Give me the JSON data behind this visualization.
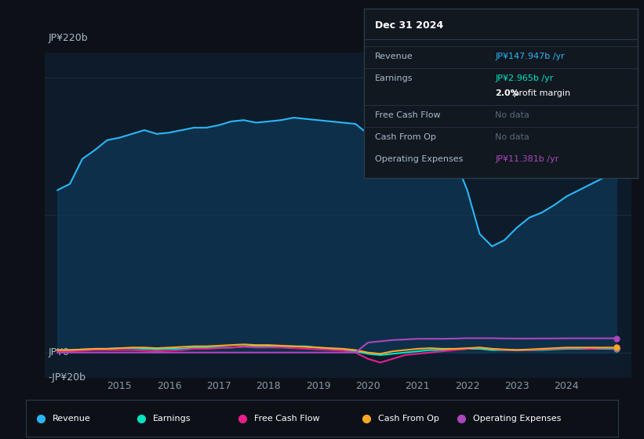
{
  "bg_color": "#0d1117",
  "plot_bg_color": "#0d1b2a",
  "grid_color": "#1e2d3d",
  "ylabel_top": "JP¥220b",
  "ylabel_zero": "JP¥0",
  "ylabel_neg": "-JP¥20b",
  "ylim": [
    -20,
    240
  ],
  "xlim": [
    2013.5,
    2025.3
  ],
  "xticks": [
    2015,
    2016,
    2017,
    2018,
    2019,
    2020,
    2021,
    2022,
    2023,
    2024
  ],
  "series": {
    "Revenue": {
      "color": "#29b6f6",
      "fill_color": "#0d3d5e",
      "x": [
        2013.75,
        2014.0,
        2014.25,
        2014.5,
        2014.75,
        2015.0,
        2015.25,
        2015.5,
        2015.75,
        2016.0,
        2016.25,
        2016.5,
        2016.75,
        2017.0,
        2017.25,
        2017.5,
        2017.75,
        2018.0,
        2018.25,
        2018.5,
        2018.75,
        2019.0,
        2019.25,
        2019.5,
        2019.75,
        2020.0,
        2020.25,
        2020.5,
        2020.75,
        2021.0,
        2021.25,
        2021.5,
        2021.75,
        2022.0,
        2022.25,
        2022.5,
        2022.75,
        2023.0,
        2023.25,
        2023.5,
        2023.75,
        2024.0,
        2024.25,
        2024.5,
        2024.75,
        2025.0
      ],
      "y": [
        130,
        135,
        155,
        162,
        170,
        172,
        175,
        178,
        175,
        176,
        178,
        180,
        180,
        182,
        185,
        186,
        184,
        185,
        186,
        188,
        187,
        186,
        185,
        184,
        183,
        175,
        165,
        158,
        150,
        148,
        150,
        152,
        155,
        130,
        95,
        85,
        90,
        100,
        108,
        112,
        118,
        125,
        130,
        135,
        140,
        148
      ]
    },
    "Earnings": {
      "color": "#00e5c3",
      "x": [
        2013.75,
        2014.0,
        2014.25,
        2014.5,
        2014.75,
        2015.0,
        2015.25,
        2015.5,
        2015.75,
        2016.0,
        2016.25,
        2016.5,
        2016.75,
        2017.0,
        2017.25,
        2017.5,
        2017.75,
        2018.0,
        2018.25,
        2018.5,
        2018.75,
        2019.0,
        2019.25,
        2019.5,
        2019.75,
        2020.0,
        2020.25,
        2020.5,
        2020.75,
        2021.0,
        2021.25,
        2021.5,
        2021.75,
        2022.0,
        2022.25,
        2022.5,
        2022.75,
        2023.0,
        2023.25,
        2023.5,
        2023.75,
        2024.0,
        2024.25,
        2024.5,
        2024.75,
        2025.0
      ],
      "y": [
        2,
        2,
        2.5,
        3,
        3,
        3.5,
        3.5,
        3,
        2.5,
        3,
        3,
        4,
        4,
        4,
        4,
        5,
        5,
        5,
        5,
        5,
        5,
        4,
        3,
        2,
        1,
        -1,
        -2,
        -1,
        0,
        1,
        2,
        2,
        2.5,
        3,
        3,
        2,
        2,
        2,
        2,
        2,
        2.5,
        3,
        3,
        3,
        3,
        3
      ]
    },
    "FreeCashFlow": {
      "color": "#e91e8c",
      "x": [
        2013.75,
        2014.0,
        2014.25,
        2014.5,
        2014.75,
        2015.0,
        2015.25,
        2015.5,
        2015.75,
        2016.0,
        2016.25,
        2016.5,
        2016.75,
        2017.0,
        2017.25,
        2017.5,
        2017.75,
        2018.0,
        2018.25,
        2018.5,
        2018.75,
        2019.0,
        2019.25,
        2019.5,
        2019.75,
        2020.0,
        2020.25,
        2020.5,
        2020.75,
        2021.0,
        2021.25,
        2021.5,
        2021.75,
        2022.0,
        2022.25,
        2022.5,
        2022.75,
        2023.0,
        2023.25,
        2023.5,
        2023.75,
        2024.0,
        2024.25,
        2024.5,
        2024.75,
        2025.0
      ],
      "y": [
        1,
        1,
        1.5,
        2,
        2,
        2,
        2,
        1.5,
        1,
        1.5,
        2,
        3,
        3,
        3.5,
        4,
        4.5,
        4,
        4,
        4,
        3.5,
        3,
        2.5,
        2,
        1.5,
        0,
        -5,
        -8,
        -5,
        -2,
        -1,
        0,
        1,
        2,
        3,
        4,
        3,
        2,
        2,
        2,
        2.5,
        3,
        3.5,
        3.5,
        3,
        3.5,
        3.5
      ]
    },
    "CashFromOp": {
      "color": "#ffa726",
      "x": [
        2013.75,
        2014.0,
        2014.25,
        2014.5,
        2014.75,
        2015.0,
        2015.25,
        2015.5,
        2015.75,
        2016.0,
        2016.25,
        2016.5,
        2016.75,
        2017.0,
        2017.25,
        2017.5,
        2017.75,
        2018.0,
        2018.25,
        2018.5,
        2018.75,
        2019.0,
        2019.25,
        2019.5,
        2019.75,
        2020.0,
        2020.25,
        2020.5,
        2020.75,
        2021.0,
        2021.25,
        2021.5,
        2021.75,
        2022.0,
        2022.25,
        2022.5,
        2022.75,
        2023.0,
        2023.25,
        2023.5,
        2023.75,
        2024.0,
        2024.25,
        2024.5,
        2024.75,
        2025.0
      ],
      "y": [
        2,
        2,
        2.5,
        3,
        3,
        3.5,
        4,
        4,
        3.5,
        4,
        4.5,
        5,
        5,
        5.5,
        6,
        6.5,
        6,
        6,
        5.5,
        5,
        4.5,
        4,
        3.5,
        3,
        2,
        0,
        -1,
        1,
        2,
        3,
        3.5,
        3,
        3,
        3.5,
        4,
        3,
        2.5,
        2,
        2.5,
        3,
        3.5,
        4,
        4,
        4,
        4,
        4
      ]
    },
    "OperatingExpenses": {
      "color": "#ab47bc",
      "x": [
        2013.75,
        2014.0,
        2014.25,
        2014.5,
        2014.75,
        2015.0,
        2015.25,
        2015.5,
        2015.75,
        2016.0,
        2016.25,
        2016.5,
        2016.75,
        2017.0,
        2017.25,
        2017.5,
        2017.75,
        2018.0,
        2018.25,
        2018.5,
        2018.75,
        2019.0,
        2019.25,
        2019.5,
        2019.75,
        2020.0,
        2020.25,
        2020.5,
        2020.75,
        2021.0,
        2021.25,
        2021.5,
        2021.75,
        2022.0,
        2022.25,
        2022.5,
        2022.75,
        2023.0,
        2023.25,
        2023.5,
        2023.75,
        2024.0,
        2024.25,
        2024.5,
        2024.75,
        2025.0
      ],
      "y": [
        0,
        0,
        0,
        0,
        0,
        0,
        0,
        0,
        0,
        0,
        0,
        0,
        0,
        0,
        0,
        0,
        0,
        0,
        0,
        0,
        0,
        0,
        0,
        0,
        0,
        8,
        9,
        10,
        10.5,
        11,
        11,
        11,
        11.2,
        11.5,
        11.5,
        11.5,
        11.3,
        11.2,
        11.2,
        11.3,
        11.3,
        11.4,
        11.4,
        11.4,
        11.4,
        11.4
      ]
    }
  },
  "info_box": {
    "title": "Dec 31 2024",
    "rows": [
      {
        "label": "Revenue",
        "value": "JP¥147.947b /yr",
        "value_color": "#29b6f6",
        "bold_part": null
      },
      {
        "label": "Earnings",
        "value": "JP¥2.965b /yr",
        "value_color": "#00e5c3",
        "bold_part": null
      },
      {
        "label": "",
        "value": "2.0% profit margin",
        "value_color": "#ffffff",
        "bold_part": "2.0%"
      },
      {
        "label": "Free Cash Flow",
        "value": "No data",
        "value_color": "#5a6a7a",
        "bold_part": null
      },
      {
        "label": "Cash From Op",
        "value": "No data",
        "value_color": "#5a6a7a",
        "bold_part": null
      },
      {
        "label": "Operating Expenses",
        "value": "JP¥11.381b /yr",
        "value_color": "#ab47bc",
        "bold_part": null
      }
    ]
  },
  "legend": [
    {
      "label": "Revenue",
      "color": "#29b6f6"
    },
    {
      "label": "Earnings",
      "color": "#00e5c3"
    },
    {
      "label": "Free Cash Flow",
      "color": "#e91e8c"
    },
    {
      "label": "Cash From Op",
      "color": "#ffa726"
    },
    {
      "label": "Operating Expenses",
      "color": "#ab47bc"
    }
  ]
}
